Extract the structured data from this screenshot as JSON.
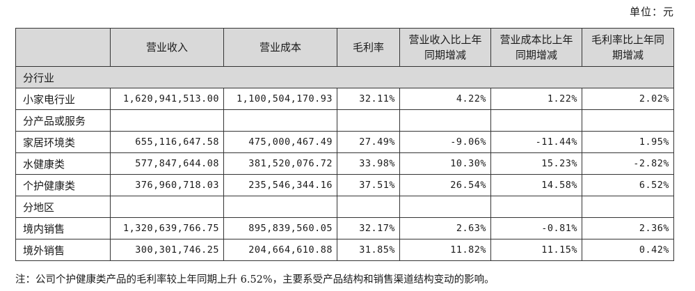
{
  "unit": "单位：元",
  "headers": [
    "",
    "营业收入",
    "营业成本",
    "毛利率",
    "营业收入比上年同期增减",
    "营业成本比上年同期增减",
    "毛利率比上年同期增减"
  ],
  "sections": [
    {
      "title": "分行业",
      "rows": [
        {
          "label": "小家电行业",
          "cells": [
            "1,620,941,513.00",
            "1,100,504,170.93",
            "32.11%",
            "4.22%",
            "1.22%",
            "2.02%"
          ]
        }
      ]
    },
    {
      "title": "分产品或服务",
      "rows": [
        {
          "label": "家居环境类",
          "cells": [
            "655,116,647.58",
            "475,000,467.49",
            "27.49%",
            "-9.06%",
            "-11.44%",
            "1.95%"
          ]
        },
        {
          "label": "水健康类",
          "cells": [
            "577,847,644.08",
            "381,520,076.72",
            "33.98%",
            "10.30%",
            "15.23%",
            "-2.82%"
          ]
        },
        {
          "label": "个护健康类",
          "cells": [
            "376,960,718.03",
            "235,546,344.16",
            "37.51%",
            "26.54%",
            "14.58%",
            "6.52%"
          ]
        }
      ]
    },
    {
      "title": "分地区",
      "rows": [
        {
          "label": "境内销售",
          "cells": [
            "1,320,639,766.75",
            "895,839,560.05",
            "32.17%",
            "2.63%",
            "-0.81%",
            "2.36%"
          ]
        },
        {
          "label": "境外销售",
          "cells": [
            "300,301,746.25",
            "204,664,610.88",
            "31.85%",
            "11.82%",
            "11.15%",
            "0.42%"
          ]
        }
      ]
    }
  ],
  "note": "注：公司个护健康类产品的毛利率较上年同期上升 6.52%，主要系受产品结构和销售渠道结构变动的影响。"
}
